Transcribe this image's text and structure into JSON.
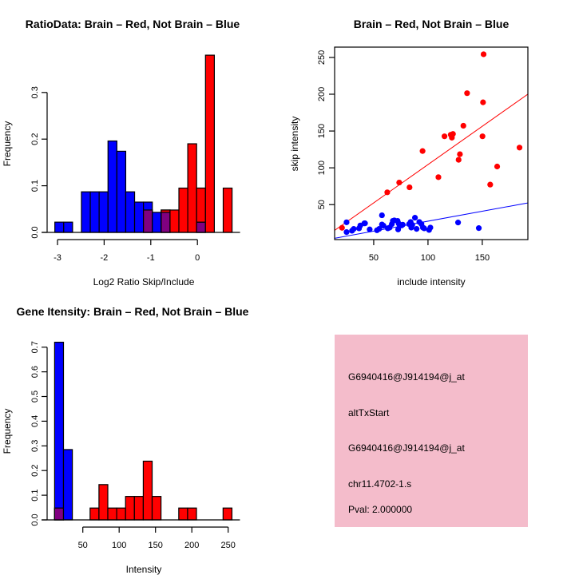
{
  "chart_data": [
    {
      "type": "bar",
      "subtype": "histogram",
      "title": "RatioData: Brain – Red, Not Brain – Blue",
      "xlabel": "Log2 Ratio Skip/Include",
      "ylabel": "Frequency",
      "bin_start": -3.057,
      "bin_width": 0.19,
      "xticks": [
        "-3",
        "-2",
        "-1",
        "0"
      ],
      "xtick_values": [
        -3,
        -2,
        -1,
        0
      ],
      "yticks": [
        "0.0",
        "0.1",
        "0.2",
        "0.3"
      ],
      "ytick_values": [
        0,
        0.1,
        0.2,
        0.3
      ],
      "series": [
        {
          "name": "Brain",
          "color": "#ff0000",
          "values": [
            0,
            0,
            0,
            0,
            0,
            0,
            0,
            0,
            0,
            0,
            0.048,
            0,
            0.048,
            0.048,
            0.095,
            0.19,
            0.095,
            0.38,
            0,
            0.095
          ]
        },
        {
          "name": "Not Brain",
          "color": "#0000ff",
          "values": [
            0.022,
            0.022,
            0,
            0.087,
            0.087,
            0.087,
            0.196,
            0.174,
            0.087,
            0.065,
            0.065,
            0.043,
            0.043,
            0,
            0,
            0,
            0.022,
            0,
            0,
            0
          ]
        }
      ],
      "overlap_color": "#800080"
    },
    {
      "type": "scatter",
      "title": "Brain – Red, Not Brain – Blue",
      "xlabel": "include intensity",
      "ylabel": "skip intensity",
      "xlim": [
        14,
        192
      ],
      "ylim": [
        2.5,
        264
      ],
      "xticks": [
        "50",
        "100",
        "150"
      ],
      "xtick_values": [
        50,
        100,
        150
      ],
      "yticks": [
        "50",
        "100",
        "150",
        "200",
        "250"
      ],
      "ytick_values": [
        50,
        100,
        150,
        200,
        250
      ],
      "series": [
        {
          "name": "Brain",
          "color": "#ff0000",
          "points": [
            [
              20.8,
              18.5
            ],
            [
              62.5,
              66.7
            ],
            [
              73.5,
              80
            ],
            [
              83,
              73.5
            ],
            [
              95,
              122.8
            ],
            [
              109.6,
              87.3
            ],
            [
              115.2,
              142.8
            ],
            [
              121,
              145
            ],
            [
              122,
              141
            ],
            [
              123,
              146
            ],
            [
              128.2,
              110.9
            ],
            [
              129.4,
              118.5
            ],
            [
              132.6,
              157.2
            ],
            [
              136,
              201.4
            ],
            [
              151.2,
              254.3
            ],
            [
              150.7,
              189
            ],
            [
              150.2,
              142.8
            ],
            [
              157.3,
              77.2
            ],
            [
              163.7,
              101.8
            ],
            [
              184.3,
              127.5
            ]
          ],
          "fit": {
            "intercept": 0.4,
            "slope": 1.04
          }
        },
        {
          "name": "Not Brain",
          "color": "#0000ff",
          "points": [
            [
              25,
              26
            ],
            [
              25,
              12.7
            ],
            [
              30,
              14.5
            ],
            [
              31.6,
              17
            ],
            [
              36.5,
              17.8
            ],
            [
              37.7,
              21.7
            ],
            [
              41.4,
              24.6
            ],
            [
              42,
              24.6
            ],
            [
              46.3,
              16.3
            ],
            [
              53,
              15.2
            ],
            [
              55,
              17
            ],
            [
              57.6,
              35.5
            ],
            [
              57.6,
              23
            ],
            [
              59,
              21.4
            ],
            [
              63,
              17.8
            ],
            [
              64.7,
              18.8
            ],
            [
              66.7,
              23.6
            ],
            [
              67.6,
              27.9
            ],
            [
              69,
              28.6
            ],
            [
              72,
              27.9
            ],
            [
              72.5,
              16.3
            ],
            [
              73,
              24.3
            ],
            [
              74,
              21.4
            ],
            [
              75.7,
              21.7
            ],
            [
              76.7,
              22.8
            ],
            [
              82.6,
              23.6
            ],
            [
              84,
              26.4
            ],
            [
              84.6,
              18.8
            ],
            [
              85.5,
              22.5
            ],
            [
              88,
              32.2
            ],
            [
              89.5,
              17
            ],
            [
              92,
              26.4
            ],
            [
              94,
              23.6
            ],
            [
              95.3,
              18.8
            ],
            [
              96.5,
              17.8
            ],
            [
              101,
              15.6
            ],
            [
              102.2,
              18.8
            ],
            [
              127.7,
              25.7
            ],
            [
              146.8,
              18.1
            ]
          ],
          "fit": {
            "intercept": 0.5,
            "slope": 0.27
          }
        }
      ]
    },
    {
      "type": "bar",
      "subtype": "histogram",
      "title": "Gene Itensity: Brain – Red, Not Brain – Blue",
      "xlabel": "Intensity",
      "ylabel": "Frequency",
      "bin_start": 11.2,
      "bin_width": 12.2,
      "xticks": [
        "50",
        "100",
        "150",
        "200",
        "250"
      ],
      "xtick_values": [
        50,
        100,
        150,
        200,
        250
      ],
      "yticks": [
        "0.0",
        "0.1",
        "0.2",
        "0.3",
        "0.4",
        "0.5",
        "0.6",
        "0.7"
      ],
      "ytick_values": [
        0,
        0.1,
        0.2,
        0.3,
        0.4,
        0.5,
        0.6,
        0.7
      ],
      "series": [
        {
          "name": "Brain",
          "color": "#ff0000",
          "values": [
            0.048,
            0,
            0,
            0,
            0.048,
            0.143,
            0.048,
            0.048,
            0.095,
            0.095,
            0.238,
            0.095,
            0,
            0,
            0.048,
            0.048,
            0,
            0,
            0,
            0.048
          ]
        },
        {
          "name": "Not Brain",
          "color": "#0000ff",
          "values": [
            0.72,
            0.285,
            0,
            0,
            0,
            0,
            0,
            0,
            0,
            0,
            0,
            0,
            0,
            0,
            0,
            0,
            0,
            0,
            0,
            0
          ]
        }
      ],
      "overlap_color": "#800080"
    }
  ],
  "info_panel": {
    "background": "#f4bccb",
    "lines": [
      "G6940416@J914194@j_at",
      "altTxStart",
      "G6940416@J914194@j_at",
      "chr11.4702-1.s"
    ],
    "pval": "Pval: 2.000000",
    "pval_color": "#8b0000"
  }
}
